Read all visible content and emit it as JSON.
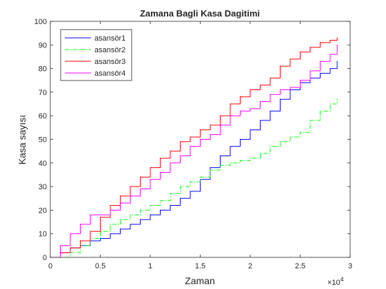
{
  "chart_data": {
    "type": "line",
    "title": "Zamana Bagli Kasa Dagitimi",
    "xlabel": "Zaman",
    "ylabel": "Kasa sayısı",
    "x_exponent_label": "×10",
    "x_exponent_power": "4",
    "xlim": [
      0,
      30000
    ],
    "ylim": [
      0,
      100
    ],
    "xticks": [
      0,
      5000,
      10000,
      15000,
      20000,
      25000,
      30000
    ],
    "xtick_labels": [
      "0",
      "0.5",
      "1",
      "1.5",
      "2",
      "2.5",
      "3"
    ],
    "yticks": [
      0,
      10,
      20,
      30,
      40,
      50,
      60,
      70,
      80,
      90,
      100
    ],
    "ytick_labels": [
      "0",
      "10",
      "20",
      "30",
      "40",
      "50",
      "60",
      "70",
      "80",
      "90",
      "100"
    ],
    "grid": false,
    "legend_position": "top-left",
    "series": [
      {
        "name": "asansör1",
        "color": "#0000ff",
        "dash": "solid",
        "x": [
          0,
          1000,
          2000,
          3000,
          4000,
          5000,
          6000,
          7000,
          8000,
          9000,
          10000,
          11000,
          12000,
          13000,
          14000,
          15000,
          16000,
          17000,
          18000,
          19000,
          20000,
          21000,
          22000,
          23000,
          24000,
          25000,
          26000,
          27000,
          28000,
          28700
        ],
        "y": [
          0,
          2,
          4,
          5,
          7,
          8,
          10,
          12,
          14,
          16,
          18,
          20,
          22,
          25,
          28,
          33,
          38,
          43,
          47,
          50,
          54,
          58,
          62,
          67,
          71,
          74,
          76,
          78,
          80,
          83
        ]
      },
      {
        "name": "asansör2",
        "color": "#00ff00",
        "dash": "dashdot",
        "x": [
          0,
          1000,
          2000,
          3000,
          4000,
          5000,
          6000,
          7000,
          8000,
          9000,
          10000,
          11000,
          12000,
          13000,
          14000,
          15000,
          16000,
          17000,
          18000,
          19000,
          20000,
          21000,
          22000,
          23000,
          24000,
          25000,
          26000,
          27000,
          28000,
          28700
        ],
        "y": [
          0,
          0,
          2,
          5,
          8,
          11,
          14,
          16,
          18,
          20,
          22,
          24,
          27,
          30,
          32,
          34,
          37,
          39,
          40,
          41,
          42,
          44,
          47,
          49,
          51,
          53,
          58,
          62,
          65,
          67
        ]
      },
      {
        "name": "asansör3",
        "color": "#ff0000",
        "dash": "solid",
        "x": [
          0,
          1000,
          2000,
          3000,
          4000,
          5000,
          6000,
          7000,
          8000,
          9000,
          10000,
          11000,
          12000,
          13000,
          14000,
          15000,
          16000,
          17000,
          18000,
          19000,
          20000,
          21000,
          22000,
          23000,
          24000,
          25000,
          26000,
          27000,
          28000,
          28700
        ],
        "y": [
          0,
          2,
          4,
          7,
          11,
          17,
          22,
          26,
          30,
          34,
          38,
          42,
          45,
          49,
          51,
          54,
          56,
          60,
          65,
          68,
          71,
          73,
          76,
          81,
          84,
          87,
          89,
          91,
          92,
          93
        ]
      },
      {
        "name": "asansör4",
        "color": "#ff00ff",
        "dash": "solid",
        "x": [
          0,
          1000,
          2000,
          3000,
          4000,
          5000,
          6000,
          7000,
          8000,
          9000,
          10000,
          11000,
          12000,
          13000,
          14000,
          15000,
          16000,
          17000,
          18000,
          19000,
          20000,
          21000,
          22000,
          23000,
          24000,
          25000,
          26000,
          27000,
          28000,
          28700
        ],
        "y": [
          0,
          5,
          10,
          14,
          18,
          18,
          20,
          23,
          26,
          29,
          33,
          36,
          40,
          43,
          47,
          50,
          52,
          56,
          60,
          62,
          63,
          66,
          69,
          71,
          72,
          75,
          79,
          83,
          86,
          90
        ]
      }
    ]
  }
}
